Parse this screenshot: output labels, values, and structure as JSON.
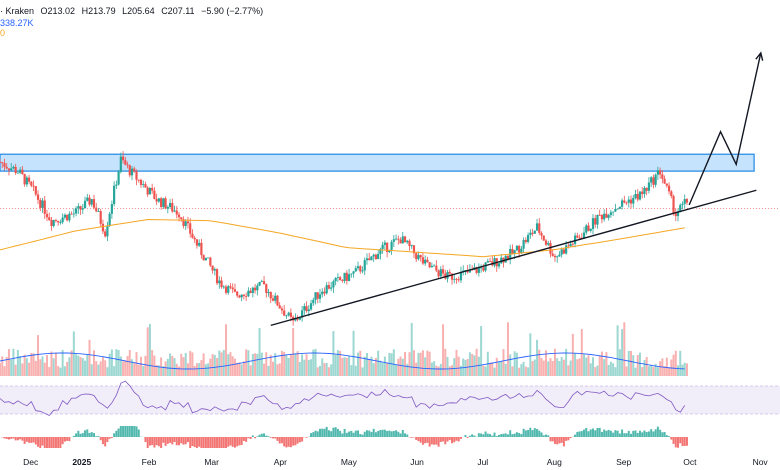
{
  "legend": {
    "exchange": "· Kraken",
    "open": "O213.02",
    "high": "H213.79",
    "low": "L205.64",
    "close": "C207.11",
    "change": "−5.90 (−2.77%)",
    "volume": "338.27K",
    "sma_value": "0"
  },
  "colors": {
    "up": "#26a69a",
    "down": "#ef5350",
    "sma": "#f5a623",
    "resistance_fill": "#bbdefb",
    "resistance_stroke": "#1e88e5",
    "trendline": "#131722",
    "rsi": "#7e57c2",
    "rsi_band": "#ede7f6",
    "vol_ma": "#2962ff"
  },
  "chart_data": {
    "type": "candlestick",
    "x_axis_labels": [
      "Dec",
      "2025",
      "Feb",
      "Mar",
      "Apr",
      "May",
      "Jun",
      "Jul",
      "Aug",
      "Sep",
      "Oct",
      "Nov"
    ],
    "price_path": [
      {
        "date": "2024-11-27",
        "close": 248
      },
      {
        "date": "2024-12-05",
        "close": 240
      },
      {
        "date": "2024-12-12",
        "close": 222
      },
      {
        "date": "2024-12-20",
        "close": 196
      },
      {
        "date": "2024-12-31",
        "close": 203
      },
      {
        "date": "2025-01-07",
        "close": 215
      },
      {
        "date": "2025-01-13",
        "close": 186
      },
      {
        "date": "2025-01-20",
        "close": 250
      },
      {
        "date": "2025-01-25",
        "close": 238
      },
      {
        "date": "2025-02-05",
        "close": 215
      },
      {
        "date": "2025-02-15",
        "close": 203
      },
      {
        "date": "2025-02-25",
        "close": 168
      },
      {
        "date": "2025-03-05",
        "close": 142
      },
      {
        "date": "2025-03-12",
        "close": 130
      },
      {
        "date": "2025-03-25",
        "close": 138
      },
      {
        "date": "2025-04-07",
        "close": 105
      },
      {
        "date": "2025-04-20",
        "close": 135
      },
      {
        "date": "2025-05-05",
        "close": 150
      },
      {
        "date": "2025-05-15",
        "close": 168
      },
      {
        "date": "2025-05-25",
        "close": 180
      },
      {
        "date": "2025-06-05",
        "close": 157
      },
      {
        "date": "2025-06-15",
        "close": 146
      },
      {
        "date": "2025-06-25",
        "close": 150
      },
      {
        "date": "2025-07-05",
        "close": 158
      },
      {
        "date": "2025-07-15",
        "close": 168
      },
      {
        "date": "2025-07-25",
        "close": 190
      },
      {
        "date": "2025-08-02",
        "close": 164
      },
      {
        "date": "2025-08-12",
        "close": 180
      },
      {
        "date": "2025-08-22",
        "close": 200
      },
      {
        "date": "2025-08-30",
        "close": 209
      },
      {
        "date": "2025-09-10",
        "close": 220
      },
      {
        "date": "2025-09-18",
        "close": 240
      },
      {
        "date": "2025-09-25",
        "close": 202
      },
      {
        "date": "2025-09-30",
        "close": 213
      }
    ],
    "sma_path": [
      {
        "date": "2024-11-27",
        "value": 170
      },
      {
        "date": "2024-12-31",
        "value": 187
      },
      {
        "date": "2025-02-01",
        "value": 197
      },
      {
        "date": "2025-03-01",
        "value": 196
      },
      {
        "date": "2025-04-01",
        "value": 185
      },
      {
        "date": "2025-05-01",
        "value": 172
      },
      {
        "date": "2025-06-01",
        "value": 168
      },
      {
        "date": "2025-07-01",
        "value": 164
      },
      {
        "date": "2025-08-01",
        "value": 170
      },
      {
        "date": "2025-09-01",
        "value": 180
      },
      {
        "date": "2025-09-30",
        "value": 190
      }
    ],
    "resistance_zone": {
      "from": "2024-11-27",
      "to": "2025-11-01",
      "low": 240,
      "high": 255
    },
    "trendline": {
      "x1": "2025-03-28",
      "y1": 103,
      "x2": "2025-10-31",
      "y2": 223
    },
    "projection": [
      {
        "date": "2025-10-01",
        "value": 210
      },
      {
        "date": "2025-10-15",
        "value": 275
      },
      {
        "date": "2025-10-22",
        "value": 246
      },
      {
        "date": "2025-11-02",
        "value": 345
      }
    ],
    "ylim": [
      90,
      360
    ],
    "xlim": [
      "2024-11-27",
      "2025-11-07"
    ],
    "volume_max_fraction": 1.0,
    "rsi_band": [
      30,
      70
    ],
    "grid": false
  }
}
